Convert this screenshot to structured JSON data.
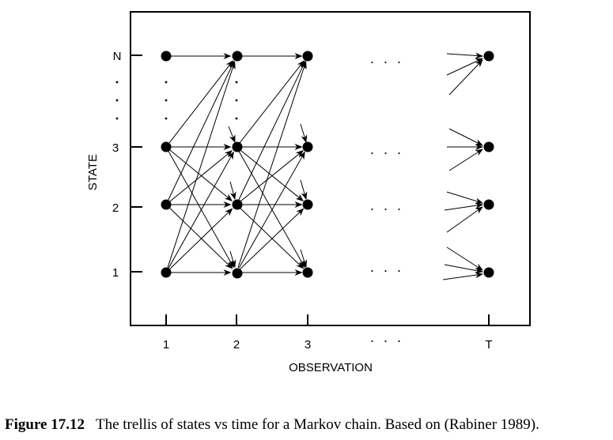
{
  "axes": {
    "y_title": "STATE",
    "x_title": "OBSERVATION",
    "y_ticks": [
      "1",
      "2",
      "3",
      "N"
    ],
    "x_ticks": [
      "1",
      "2",
      "3",
      "T"
    ],
    "x_ellipsis": "· · ·"
  },
  "trellis": {
    "gap_ellipsis": "· · ·"
  },
  "caption": {
    "label": "Figure 17.12",
    "text": "The trellis of states vs time for a Markov chain. Based on (Rabiner 1989)."
  }
}
